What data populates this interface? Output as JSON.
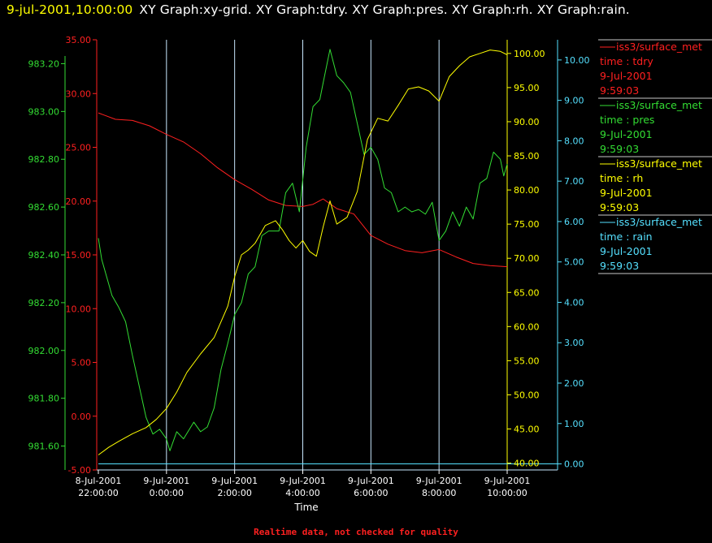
{
  "header": {
    "timestamp": "9-jul-2001,10:00:00",
    "titles": "XY Graph:xy-grid.  XY Graph:tdry.  XY Graph:pres.  XY Graph:rh.  XY Graph:rain."
  },
  "footer": {
    "note": "Realtime data, not checked for quality"
  },
  "colors": {
    "tdry": "#ff2020",
    "pres": "#33dd33",
    "rh": "#ffff00",
    "rain": "#55e0ff",
    "grid": "#c8e8ff",
    "background": "#000000"
  },
  "chart_data": {
    "type": "line",
    "grid": true,
    "legend_position": "right",
    "x_label": "Time",
    "x_ticks": [
      {
        "t": 0,
        "line1": "8-Jul-2001",
        "line2": "22:00:00"
      },
      {
        "t": 2,
        "line1": "9-Jul-2001",
        "line2": "0:00:00"
      },
      {
        "t": 4,
        "line1": "9-Jul-2001",
        "line2": "2:00:00"
      },
      {
        "t": 6,
        "line1": "9-Jul-2001",
        "line2": "4:00:00"
      },
      {
        "t": 8,
        "line1": "9-Jul-2001",
        "line2": "6:00:00"
      },
      {
        "t": 10,
        "line1": "9-Jul-2001",
        "line2": "8:00:00"
      },
      {
        "t": 12,
        "line1": "9-Jul-2001",
        "line2": "10:00:00"
      }
    ],
    "x_range_hours": [
      0,
      12
    ],
    "axes": {
      "tdry": {
        "min": -5,
        "max": 35,
        "ticks": [
          "-5.00",
          "0.00",
          "5.00",
          "10.00",
          "15.00",
          "20.00",
          "25.00",
          "30.00",
          "35.00"
        ]
      },
      "pres": {
        "min": 981.5,
        "max": 983.3,
        "ticks": [
          "981.60",
          "981.80",
          "982.00",
          "982.20",
          "982.40",
          "982.60",
          "982.80",
          "983.00",
          "983.20"
        ]
      },
      "rh": {
        "min": 39,
        "max": 102,
        "ticks": [
          "40.00",
          "45.00",
          "50.00",
          "55.00",
          "60.00",
          "65.00",
          "70.00",
          "75.00",
          "80.00",
          "85.00",
          "90.00",
          "95.00",
          "100.00"
        ]
      },
      "rain": {
        "min": -0.15,
        "max": 10.5,
        "ticks": [
          "0.00",
          "1.00",
          "2.00",
          "3.00",
          "4.00",
          "5.00",
          "6.00",
          "7.00",
          "8.00",
          "9.00",
          "10.00"
        ]
      }
    },
    "series": [
      {
        "key": "tdry",
        "source": "iss3/surface_met",
        "label": "time : tdry",
        "date": "9-Jul-2001",
        "time": "9:59:03",
        "points": [
          [
            0,
            28.2
          ],
          [
            0.5,
            27.6
          ],
          [
            1,
            27.5
          ],
          [
            1.5,
            27.0
          ],
          [
            2,
            26.2
          ],
          [
            2.5,
            25.5
          ],
          [
            3,
            24.4
          ],
          [
            3.5,
            23.1
          ],
          [
            4,
            22.0
          ],
          [
            4.5,
            21.1
          ],
          [
            5,
            20.1
          ],
          [
            5.5,
            19.6
          ],
          [
            6,
            19.5
          ],
          [
            6.3,
            19.7
          ],
          [
            6.6,
            20.2
          ],
          [
            7,
            19.3
          ],
          [
            7.5,
            18.8
          ],
          [
            8,
            16.8
          ],
          [
            8.5,
            16.0
          ],
          [
            9,
            15.4
          ],
          [
            9.5,
            15.2
          ],
          [
            10,
            15.5
          ],
          [
            10.5,
            14.8
          ],
          [
            11,
            14.2
          ],
          [
            11.5,
            14.0
          ],
          [
            12,
            13.9
          ]
        ]
      },
      {
        "key": "pres",
        "source": "iss3/surface_met",
        "label": "time : pres",
        "date": "9-Jul-2001",
        "time": "9:59:03",
        "points": [
          [
            0,
            982.47
          ],
          [
            0.1,
            982.38
          ],
          [
            0.4,
            982.23
          ],
          [
            0.6,
            982.18
          ],
          [
            0.8,
            982.12
          ],
          [
            1,
            981.98
          ],
          [
            1.2,
            981.85
          ],
          [
            1.4,
            981.72
          ],
          [
            1.6,
            981.65
          ],
          [
            1.8,
            981.67
          ],
          [
            2,
            981.63
          ],
          [
            2.1,
            981.58
          ],
          [
            2.3,
            981.66
          ],
          [
            2.5,
            981.63
          ],
          [
            2.8,
            981.7
          ],
          [
            3,
            981.66
          ],
          [
            3.2,
            981.68
          ],
          [
            3.4,
            981.76
          ],
          [
            3.6,
            981.92
          ],
          [
            3.8,
            982.03
          ],
          [
            4,
            982.15
          ],
          [
            4.2,
            982.2
          ],
          [
            4.4,
            982.32
          ],
          [
            4.6,
            982.35
          ],
          [
            4.8,
            982.48
          ],
          [
            5,
            982.5
          ],
          [
            5.3,
            982.5
          ],
          [
            5.5,
            982.66
          ],
          [
            5.7,
            982.7
          ],
          [
            5.9,
            982.58
          ],
          [
            6.1,
            982.85
          ],
          [
            6.3,
            983.02
          ],
          [
            6.5,
            983.05
          ],
          [
            6.6,
            983.12
          ],
          [
            6.8,
            983.26
          ],
          [
            7,
            983.15
          ],
          [
            7.2,
            983.12
          ],
          [
            7.4,
            983.08
          ],
          [
            7.6,
            982.95
          ],
          [
            7.8,
            982.82
          ],
          [
            8,
            982.85
          ],
          [
            8.2,
            982.8
          ],
          [
            8.4,
            982.68
          ],
          [
            8.6,
            982.66
          ],
          [
            8.8,
            982.58
          ],
          [
            9,
            982.6
          ],
          [
            9.2,
            982.58
          ],
          [
            9.4,
            982.59
          ],
          [
            9.6,
            982.57
          ],
          [
            9.8,
            982.62
          ],
          [
            10,
            982.46
          ],
          [
            10.2,
            982.5
          ],
          [
            10.4,
            982.58
          ],
          [
            10.6,
            982.52
          ],
          [
            10.8,
            982.6
          ],
          [
            11,
            982.55
          ],
          [
            11.2,
            982.7
          ],
          [
            11.4,
            982.72
          ],
          [
            11.6,
            982.83
          ],
          [
            11.8,
            982.8
          ],
          [
            11.9,
            982.73
          ],
          [
            12,
            982.78
          ]
        ]
      },
      {
        "key": "rh",
        "source": "iss3/surface_met",
        "label": "time : rh",
        "date": "9-Jul-2001",
        "time": "9:59:03",
        "points": [
          [
            0,
            41.2
          ],
          [
            0.3,
            42.3
          ],
          [
            0.6,
            43.2
          ],
          [
            1,
            44.3
          ],
          [
            1.4,
            45.2
          ],
          [
            1.7,
            46.4
          ],
          [
            2,
            48.0
          ],
          [
            2.3,
            50.4
          ],
          [
            2.6,
            53.3
          ],
          [
            3,
            56.0
          ],
          [
            3.4,
            58.4
          ],
          [
            3.8,
            63.0
          ],
          [
            4,
            67.3
          ],
          [
            4.2,
            70.5
          ],
          [
            4.4,
            71.2
          ],
          [
            4.6,
            72.2
          ],
          [
            4.9,
            74.8
          ],
          [
            5.2,
            75.5
          ],
          [
            5.4,
            74.2
          ],
          [
            5.6,
            72.6
          ],
          [
            5.8,
            71.5
          ],
          [
            6,
            72.6
          ],
          [
            6.2,
            71.0
          ],
          [
            6.4,
            70.3
          ],
          [
            6.6,
            74.6
          ],
          [
            6.8,
            78.4
          ],
          [
            7,
            75.0
          ],
          [
            7.3,
            76.0
          ],
          [
            7.6,
            79.8
          ],
          [
            7.9,
            87.4
          ],
          [
            8.2,
            90.5
          ],
          [
            8.5,
            90.1
          ],
          [
            8.8,
            92.4
          ],
          [
            9.1,
            94.8
          ],
          [
            9.4,
            95.1
          ],
          [
            9.7,
            94.5
          ],
          [
            10,
            93.0
          ],
          [
            10.3,
            96.6
          ],
          [
            10.6,
            98.2
          ],
          [
            10.9,
            99.5
          ],
          [
            11.2,
            100.0
          ],
          [
            11.5,
            100.5
          ],
          [
            11.8,
            100.3
          ],
          [
            12,
            99.8
          ]
        ]
      },
      {
        "key": "rain",
        "source": "iss3/surface_met",
        "label": "time : rain",
        "date": "9-Jul-2001",
        "time": "9:59:03",
        "points": [
          [
            0,
            0.0
          ],
          [
            12,
            0.0
          ]
        ]
      }
    ]
  }
}
